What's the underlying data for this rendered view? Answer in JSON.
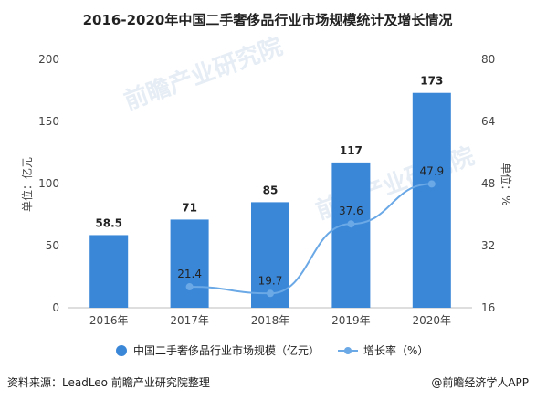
{
  "chart_data": {
    "type": "bar",
    "title": "2016-2020年中国二手奢侈品行业市场规模统计及增长情况",
    "categories": [
      "2016年",
      "2017年",
      "2018年",
      "2019年",
      "2020年"
    ],
    "series": [
      {
        "name": "中国二手奢侈品行业市场规模（亿元）",
        "type": "bar",
        "axis": "left",
        "values": [
          58.5,
          71,
          85,
          117,
          173
        ],
        "labels": [
          "58.5",
          "71",
          "85",
          "117",
          "173"
        ],
        "color": "#3a87d8"
      },
      {
        "name": "增长率（%）",
        "type": "line",
        "axis": "right",
        "values": [
          null,
          21.4,
          19.7,
          37.6,
          47.9
        ],
        "labels": [
          "",
          "21.4",
          "19.7",
          "37.6",
          "47.9"
        ],
        "color": "#6aa8e6"
      }
    ],
    "ylabel_left": "单位：亿元",
    "ylabel_right": "单位：%",
    "ylim_left": [
      0,
      200
    ],
    "yticks_left": [
      "0",
      "50",
      "100",
      "150",
      "200"
    ],
    "ylim_right": [
      16,
      80
    ],
    "yticks_right": [
      "16",
      "32",
      "48",
      "64",
      "80"
    ],
    "grid": false,
    "legend": "bottom"
  },
  "footer": {
    "source": "资料来源：LeadLeo 前瞻产业研究院整理",
    "brand": "@前瞻经济学人APP"
  },
  "watermark": {
    "text": "前瞻产业研究院"
  }
}
